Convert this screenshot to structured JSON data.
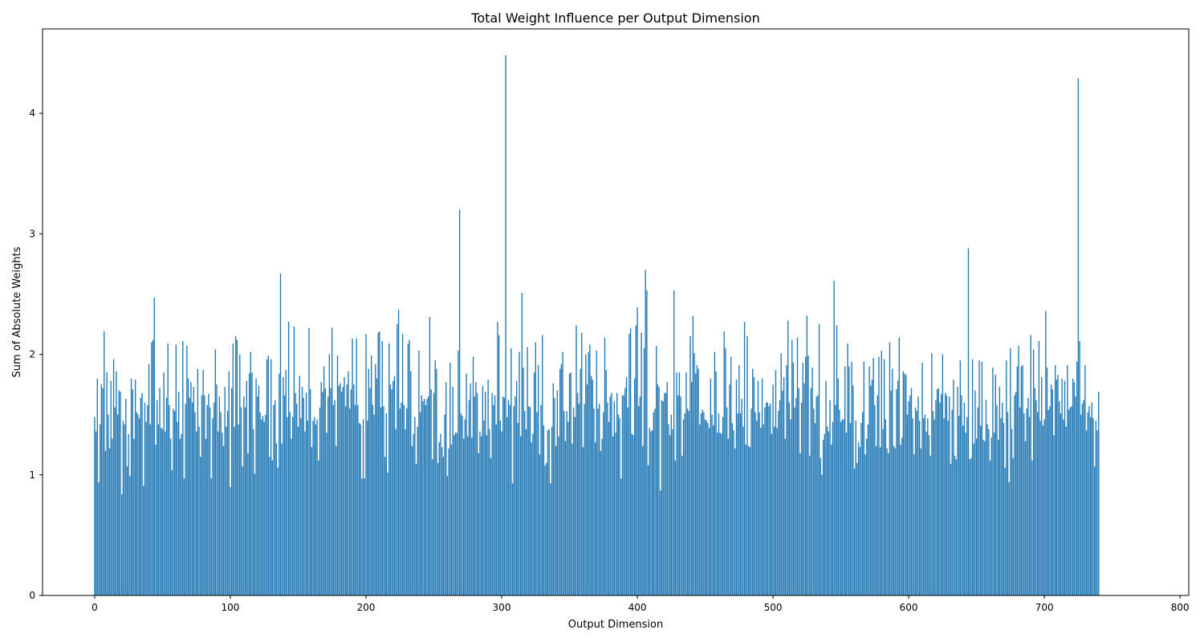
{
  "chart_data": {
    "type": "bar",
    "title": "Total Weight Influence per Output Dimension",
    "xlabel": "Output Dimension",
    "ylabel": "Sum of Absolute Weights",
    "xlim": [
      -38.4,
      806.4
    ],
    "ylim": [
      0,
      4.7
    ],
    "xticks": [
      0,
      100,
      200,
      300,
      400,
      500,
      600,
      700,
      800
    ],
    "yticks": [
      0,
      1,
      2,
      3,
      4
    ],
    "grid": false,
    "legend": "none",
    "bar_color": "#1f77b4",
    "bar_count": 768,
    "x_start": 0,
    "values": [
      1.48,
      1.36,
      1.8,
      0.94,
      1.42,
      1.75,
      1.72,
      2.19,
      1.2,
      1.85,
      1.5,
      1.22,
      1.78,
      1.3,
      1.96,
      1.56,
      1.86,
      1.5,
      1.7,
      1.69,
      0.84,
      1.45,
      1.42,
      1.63,
      1.07,
      1.34,
      0.99,
      1.8,
      1.71,
      1.3,
      1.79,
      1.52,
      1.5,
      1.47,
      1.64,
      1.68,
      0.91,
      1.6,
      1.44,
      1.58,
      1.92,
      1.42,
      2.1,
      2.12,
      2.47,
      1.25,
      1.62,
      1.42,
      1.72,
      1.39,
      1.38,
      1.85,
      1.36,
      1.64,
      2.09,
      1.58,
      1.3,
      1.04,
      1.55,
      1.53,
      2.08,
      1.44,
      1.69,
      1.3,
      1.34,
      2.11,
      0.97,
      1.59,
      2.07,
      1.8,
      1.64,
      1.77,
      1.6,
      1.73,
      1.52,
      1.36,
      1.88,
      1.4,
      1.15,
      1.66,
      1.87,
      1.66,
      1.3,
      1.58,
      1.67,
      1.56,
      0.97,
      1.47,
      1.6,
      2.04,
      1.75,
      1.36,
      1.65,
      1.52,
      1.35,
      1.24,
      1.73,
      1.4,
      1.53,
      1.86,
      0.9,
      1.72,
      2.09,
      1.4,
      2.15,
      2.12,
      1.42,
      2.0,
      1.56,
      1.07,
      1.65,
      1.56,
      1.78,
      1.18,
      1.84,
      2.02,
      1.85,
      1.38,
      1.01,
      1.8,
      1.65,
      1.74,
      1.52,
      1.46,
      1.49,
      1.44,
      1.5,
      1.96,
      1.99,
      1.15,
      1.96,
      1.12,
      1.58,
      1.62,
      1.26,
      1.06,
      1.84,
      2.67,
      1.26,
      1.81,
      1.66,
      1.87,
      1.48,
      2.27,
      1.52,
      1.3,
      1.48,
      2.23,
      1.68,
      1.59,
      1.4,
      1.82,
      1.47,
      1.73,
      1.64,
      1.36,
      1.68,
      1.45,
      2.22,
      1.71,
      1.23,
      1.45,
      1.48,
      1.42,
      1.46,
      1.12,
      1.56,
      1.77,
      1.69,
      1.9,
      1.72,
      1.35,
      1.65,
      2.0,
      1.72,
      2.22,
      1.58,
      1.62,
      1.24,
      1.99,
      1.74,
      1.76,
      1.69,
      1.73,
      1.81,
      1.57,
      1.75,
      1.86,
      1.55,
      1.71,
      2.13,
      1.75,
      1.58,
      2.13,
      1.58,
      1.43,
      1.42,
      0.97,
      1.46,
      0.97,
      2.17,
      1.45,
      1.88,
      1.72,
      1.99,
      1.58,
      1.5,
      1.92,
      1.8,
      2.18,
      2.19,
      1.56,
      2.11,
      1.57,
      1.15,
      1.51,
      1.02,
      2.09,
      1.75,
      1.71,
      1.78,
      1.82,
      1.38,
      2.25,
      2.37,
      1.55,
      1.6,
      2.17,
      1.58,
      1.38,
      1.55,
      2.09,
      2.12,
      1.86,
      1.24,
      1.34,
      1.48,
      1.09,
      1.4,
      2.03,
      1.52,
      1.66,
      1.61,
      1.63,
      1.58,
      1.63,
      1.65,
      2.31,
      1.71,
      1.13,
      1.68,
      1.95,
      1.88,
      1.1,
      1.27,
      1.34,
      1.23,
      1.15,
      1.5,
      1.77,
      0.99,
      1.22,
      1.93,
      1.25,
      1.73,
      1.33,
      1.35,
      1.35,
      2.03,
      3.2,
      1.51,
      1.49,
      1.3,
      1.46,
      1.84,
      1.32,
      1.62,
      1.76,
      1.31,
      1.98,
      1.65,
      1.77,
      1.68,
      1.18,
      1.36,
      1.32,
      1.74,
      1.45,
      1.69,
      1.33,
      1.79,
      1.38,
      1.14,
      1.68,
      1.58,
      1.66,
      1.42,
      2.27,
      2.16,
      1.45,
      1.36,
      1.65,
      1.64,
      4.48,
      1.48,
      1.62,
      1.58,
      2.05,
      0.93,
      1.57,
      1.65,
      1.78,
      1.43,
      2.02,
      1.32,
      2.51,
      1.89,
      1.53,
      1.38,
      2.06,
      1.57,
      1.56,
      1.27,
      1.34,
      1.85,
      2.1,
      1.52,
      1.91,
      1.17,
      1.58,
      2.16,
      1.41,
      1.08,
      1.1,
      1.37,
      1.38,
      0.93,
      1.4,
      1.76,
      1.64,
      1.24,
      1.7,
      1.32,
      1.88,
      1.92,
      2.02,
      1.53,
      1.28,
      1.53,
      1.44,
      1.84,
      1.85,
      1.26,
      1.56,
      1.48,
      2.24,
      1.68,
      1.59,
      1.88,
      2.18,
      1.23,
      1.59,
      2.0,
      1.75,
      2.02,
      2.08,
      1.82,
      1.79,
      1.55,
      1.27,
      2.03,
      1.55,
      1.59,
      1.2,
      1.3,
      1.52,
      2.14,
      1.87,
      1.6,
      1.44,
      1.65,
      1.68,
      1.32,
      1.61,
      1.35,
      1.68,
      1.5,
      1.47,
      0.97,
      1.66,
      1.66,
      1.72,
      1.81,
      1.56,
      2.17,
      2.22,
      1.34,
      1.33,
      1.8,
      2.24,
      2.39,
      1.57,
      1.65,
      2.18,
      1.24,
      2.05,
      2.7,
      2.53,
      1.08,
      1.39,
      1.36,
      1.37,
      1.52,
      1.55,
      2.07,
      1.75,
      1.73,
      0.87,
      1.62,
      1.61,
      1.68,
      1.68,
      1.77,
      1.42,
      1.33,
      1.5,
      1.38,
      2.53,
      1.12,
      1.85,
      1.66,
      1.85,
      1.65,
      1.16,
      1.46,
      1.51,
      1.85,
      1.55,
      1.53,
      2.15,
      1.77,
      2.32,
      2.01,
      1.84,
      1.91,
      1.88,
      1.42,
      1.51,
      1.54,
      1.52,
      1.46,
      1.45,
      1.43,
      1.39,
      1.8,
      1.5,
      1.41,
      2.02,
      1.86,
      1.35,
      1.51,
      1.35,
      1.34,
      1.48,
      2.19,
      2.05,
      1.56,
      1.3,
      1.75,
      1.98,
      1.43,
      1.37,
      1.22,
      1.79,
      1.51,
      1.91,
      1.51,
      1.63,
      1.4,
      2.27,
      1.25,
      2.15,
      1.24,
      1.23,
      1.55,
      1.88,
      1.81,
      1.52,
      1.45,
      1.78,
      1.52,
      1.39,
      1.8,
      1.42,
      1.56,
      1.6,
      1.6,
      1.57,
      1.59,
      1.34,
      1.75,
      1.4,
      1.87,
      1.39,
      1.53,
      1.62,
      2.01,
      1.7,
      1.81,
      1.3,
      1.91,
      2.28,
      1.6,
      1.46,
      2.12,
      1.93,
      1.56,
      1.64,
      2.14,
      1.72,
      1.18,
      1.6,
      1.93,
      1.76,
      1.98,
      2.32,
      1.99,
      1.16,
      1.72,
      1.89,
      1.55,
      1.43,
      1.65,
      1.66,
      2.25,
      1.14,
      1.0,
      1.29,
      1.34,
      1.78,
      1.4,
      1.36,
      1.62,
      1.25,
      1.44,
      2.61,
      1.58,
      2.24,
      1.8,
      1.54,
      1.44,
      1.46,
      1.46,
      1.9,
      1.35,
      2.09,
      1.9,
      1.43,
      1.94,
      1.74,
      1.05,
      1.45,
      1.1,
      1.27,
      1.23,
      1.43,
      1.52,
      1.94,
      1.17,
      1.3,
      1.42,
      1.9,
      1.74,
      1.79,
      1.97,
      1.58,
      1.24,
      1.66,
      1.98,
      1.23,
      2.03,
      1.38,
      1.96,
      1.46,
      1.22,
      1.18,
      2.1,
      1.7,
      1.88,
      1.24,
      1.22,
      1.71,
      1.78,
      2.14,
      1.25,
      1.31,
      1.86,
      1.84,
      1.83,
      1.5,
      1.61,
      1.66,
      1.72,
      1.47,
      1.17,
      1.56,
      1.53,
      1.65,
      1.45,
      1.22,
      1.93,
      1.47,
      1.5,
      1.36,
      1.47,
      1.33,
      1.16,
      2.01,
      1.53,
      1.46,
      1.62,
      1.71,
      1.72,
      1.6,
      1.67,
      2.0,
      1.47,
      1.68,
      1.66,
      1.45,
      1.65,
      1.09,
      1.54,
      1.79,
      1.16,
      1.13,
      1.73,
      1.49,
      1.95,
      1.66,
      1.41,
      1.6,
      1.35,
      1.48,
      2.88,
      1.13,
      1.14,
      1.96,
      1.26,
      1.7,
      1.3,
      1.56,
      1.95,
      1.41,
      1.94,
      1.29,
      1.28,
      1.62,
      1.42,
      1.38,
      1.12,
      1.31,
      1.89,
      1.35,
      1.83,
      1.58,
      1.29,
      1.73,
      1.47,
      1.6,
      1.43,
      1.06,
      1.95,
      1.52,
      0.94,
      2.05,
      1.38,
      1.14,
      1.66,
      1.69,
      1.9,
      2.07,
      1.56,
      1.9,
      1.91,
      1.51,
      1.28,
      1.55,
      1.64,
      1.48,
      2.16,
      1.12,
      2.04,
      1.72,
      1.62,
      1.52,
      2.11,
      1.45,
      1.81,
      1.41,
      1.46,
      2.36,
      1.89,
      1.54,
      1.57,
      1.75,
      1.71,
      1.33,
      1.91,
      1.79,
      1.83,
      1.61,
      1.51,
      1.8,
      1.46,
      1.78,
      1.4,
      1.91,
      1.54,
      1.56,
      1.57,
      1.8,
      1.77,
      1.65,
      1.94,
      4.29,
      2.11,
      1.5,
      1.59,
      1.62,
      1.91,
      1.37,
      1.52,
      1.57,
      1.48,
      1.6,
      1.47,
      1.07,
      1.45,
      1.37,
      1.69
    ]
  }
}
